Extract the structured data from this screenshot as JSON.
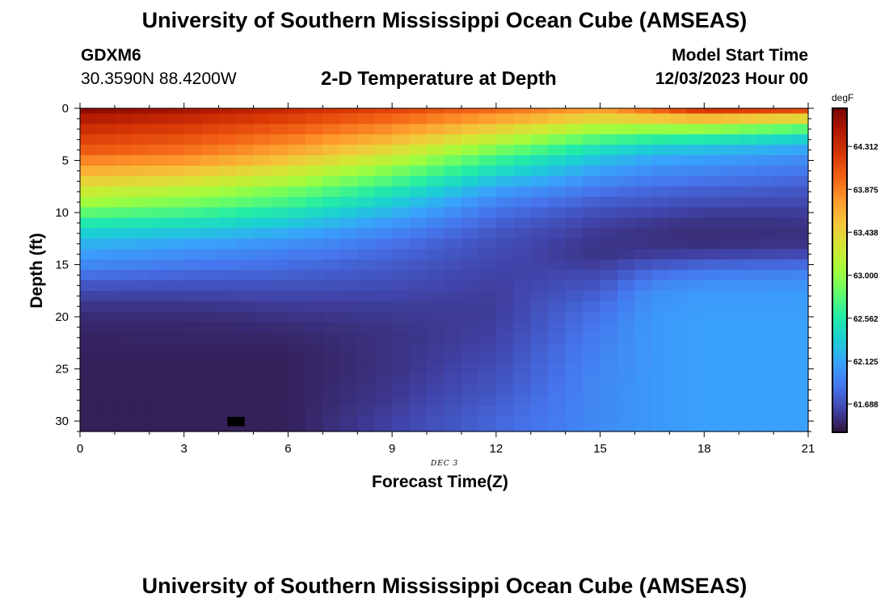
{
  "title_top": "University of Southern Mississippi Ocean Cube (AMSEAS)",
  "title_bottom": "University of Southern Mississippi Ocean Cube (AMSEAS)",
  "station": {
    "name": "GDXM6",
    "coords": "30.3590N  88.4200W"
  },
  "model": {
    "label": "Model Start Time",
    "start": "12/03/2023 Hour 00"
  },
  "plot_title": "2-D Temperature at Depth",
  "chart_data": {
    "type": "heatmap",
    "title": "2-D Temperature at Depth",
    "xlabel": "Forecast Time(Z)",
    "ylabel": "Depth (ft)",
    "x_range": [
      0,
      21
    ],
    "y_range": [
      0,
      31
    ],
    "y_inverted": true,
    "x_ticks": [
      0,
      3,
      6,
      9,
      12,
      15,
      18,
      21
    ],
    "y_ticks": [
      0,
      5,
      10,
      15,
      20,
      25,
      30
    ],
    "date_annotation": "DEC 3",
    "colorbar": {
      "unit": "degF",
      "min": 61.4,
      "max": 64.7,
      "ticks": [
        "64.312",
        "63.875",
        "63.438",
        "63.000",
        "62.562",
        "62.125",
        "61.688"
      ],
      "palette": [
        "#30123b",
        "#4145ab",
        "#4675ed",
        "#39a2fc",
        "#1bcfd4",
        "#24eca6",
        "#61fc6c",
        "#a4fc3b",
        "#d1e834",
        "#f3c63a",
        "#fe9b2d",
        "#f36315",
        "#d93806",
        "#b11901",
        "#7a0403"
      ]
    },
    "times": [
      0,
      3,
      6,
      9,
      12,
      15,
      16.5,
      18,
      21
    ],
    "depths": [
      0,
      1,
      2,
      3,
      4,
      5,
      6,
      7,
      8,
      9,
      10,
      11,
      12,
      13,
      14,
      15,
      16,
      17,
      18,
      19,
      20,
      21,
      22,
      23,
      24,
      25,
      26,
      27,
      28,
      29,
      30
    ],
    "profiles": [
      [
        64.62,
        64.45,
        64.3,
        64.18,
        64.05,
        63.85,
        63.65,
        63.45,
        63.25,
        63.05,
        62.8,
        62.55,
        62.35,
        62.2,
        62.08,
        61.98,
        61.85,
        61.72,
        61.62,
        61.56,
        61.52,
        61.5,
        61.48,
        61.48,
        61.47,
        61.47,
        61.46,
        61.46,
        61.46,
        61.46,
        61.46
      ],
      [
        64.5,
        64.35,
        64.2,
        64.08,
        63.95,
        63.78,
        63.55,
        63.35,
        63.12,
        62.92,
        62.7,
        62.48,
        62.28,
        62.12,
        62.0,
        61.9,
        61.8,
        61.7,
        61.62,
        61.56,
        61.52,
        61.5,
        61.49,
        61.48,
        61.47,
        61.47,
        61.47,
        61.46,
        61.46,
        61.46,
        61.46
      ],
      [
        64.32,
        64.18,
        64.03,
        63.88,
        63.72,
        63.52,
        63.3,
        63.1,
        62.88,
        62.7,
        62.5,
        62.32,
        62.15,
        62.02,
        61.92,
        61.84,
        61.77,
        61.7,
        61.64,
        61.59,
        61.55,
        61.52,
        61.5,
        61.48,
        61.47,
        61.47,
        61.47,
        61.47,
        61.47,
        61.47,
        61.47
      ],
      [
        64.15,
        63.98,
        63.8,
        63.6,
        63.38,
        63.15,
        62.92,
        62.72,
        62.52,
        62.35,
        62.2,
        62.06,
        61.95,
        61.86,
        61.8,
        61.75,
        61.71,
        61.67,
        61.63,
        61.6,
        61.58,
        61.56,
        61.55,
        61.55,
        61.55,
        61.55,
        61.56,
        61.57,
        61.58,
        61.6,
        61.62
      ],
      [
        63.95,
        63.72,
        63.45,
        63.18,
        62.9,
        62.65,
        62.45,
        62.25,
        62.08,
        61.95,
        61.85,
        61.78,
        61.72,
        61.68,
        61.66,
        61.64,
        61.62,
        61.61,
        61.6,
        61.6,
        61.6,
        61.61,
        61.62,
        61.64,
        61.66,
        61.68,
        61.7,
        61.72,
        61.75,
        61.78,
        61.8
      ],
      [
        63.7,
        63.4,
        63.05,
        62.72,
        62.45,
        62.25,
        62.1,
        61.98,
        61.86,
        61.76,
        61.68,
        61.62,
        61.58,
        61.56,
        61.56,
        61.6,
        61.66,
        61.72,
        61.78,
        61.83,
        61.87,
        61.9,
        61.92,
        61.94,
        61.95,
        61.96,
        61.97,
        61.98,
        61.98,
        61.98,
        61.98
      ],
      [
        63.95,
        63.5,
        63.0,
        62.6,
        62.3,
        62.12,
        62.0,
        61.9,
        61.8,
        61.72,
        61.64,
        61.58,
        61.55,
        61.55,
        61.6,
        61.72,
        61.85,
        61.96,
        62.02,
        62.04,
        62.05,
        62.06,
        62.06,
        62.06,
        62.06,
        62.06,
        62.06,
        62.06,
        62.06,
        62.06,
        62.06
      ],
      [
        64.25,
        63.6,
        63.0,
        62.55,
        62.25,
        62.08,
        61.96,
        61.86,
        61.76,
        61.68,
        61.6,
        61.55,
        61.53,
        61.54,
        61.62,
        61.78,
        61.92,
        62.02,
        62.06,
        62.08,
        62.09,
        62.1,
        62.1,
        62.1,
        62.1,
        62.1,
        62.1,
        62.1,
        62.1,
        62.1,
        62.1
      ],
      [
        64.1,
        63.4,
        62.75,
        62.35,
        62.12,
        61.98,
        61.88,
        61.8,
        61.72,
        61.66,
        61.6,
        61.56,
        61.54,
        61.56,
        61.66,
        61.82,
        61.95,
        62.03,
        62.07,
        62.08,
        62.09,
        62.1,
        62.1,
        62.1,
        62.1,
        62.1,
        62.1,
        62.1,
        62.1,
        62.1,
        62.1
      ]
    ]
  }
}
